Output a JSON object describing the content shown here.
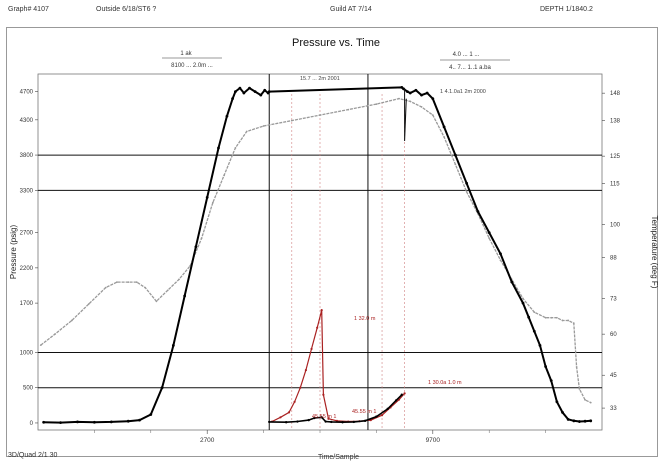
{
  "header": {
    "left": "Graph# 4107",
    "client": "Outside  6/18/ST6 ?",
    "center": "Guild AT 7/14",
    "right": "DEPTH 1/1840.2"
  },
  "footer": {
    "left": "3D/Quad 2/1 30",
    "center": "Time/Sample"
  },
  "annotations": {
    "top_left_fraction_top": "1 ak",
    "top_left_fraction_bottom": "8100 ... 2.0m ...",
    "top_right_fraction_top": "4.0 ... 1 ...",
    "top_right_fraction_bottom": "4.. 7... 1..1 a.ba",
    "peak_left": "15.7 ... 2m 2001",
    "peak_right": "1 4.1.0a1 2m 2000",
    "red_peak": "1 32.0 m",
    "red_end": "1 30.0a 1.0 m",
    "red_low_left": "45.55 m 1",
    "red_low_mid": "45.55 m 1"
  },
  "chart_data": {
    "type": "line",
    "title": "Pressure vs. Time",
    "xlabel": "",
    "ylabel": "Pressure (psig)",
    "y2label": "Temperature (deg F)",
    "xlim": [
      0,
      100
    ],
    "xticks": [
      {
        "x": 30,
        "label": "2700"
      },
      {
        "x": 70,
        "label": "9700"
      }
    ],
    "ylim": [
      -100,
      4950
    ],
    "yticks": [
      {
        "v": 4700,
        "label": "4700"
      },
      {
        "v": 4300,
        "label": "4300"
      },
      {
        "v": 3800,
        "label": "3800"
      },
      {
        "v": 3300,
        "label": "3300"
      },
      {
        "v": 2700,
        "label": "2700"
      },
      {
        "v": 2200,
        "label": "2200"
      },
      {
        "v": 1700,
        "label": "1700"
      },
      {
        "v": 1000,
        "label": "1000"
      },
      {
        "v": 500,
        "label": "500"
      },
      {
        "v": 0,
        "label": "0"
      }
    ],
    "y2lim": [
      25,
      155
    ],
    "y2ticks": [
      {
        "v": 148,
        "label": "148"
      },
      {
        "v": 138,
        "label": "138"
      },
      {
        "v": 125,
        "label": "125"
      },
      {
        "v": 115,
        "label": "115"
      },
      {
        "v": 100,
        "label": "100"
      },
      {
        "v": 88,
        "label": "88"
      },
      {
        "v": 73,
        "label": "73"
      },
      {
        "v": 60,
        "label": "60"
      },
      {
        "v": 45,
        "label": "45"
      },
      {
        "v": 33,
        "label": "33"
      }
    ],
    "hlines": [
      3800,
      3300,
      1000,
      500
    ],
    "vlines": [
      41,
      58.5
    ],
    "dashed_vlines": [
      45,
      50,
      61,
      65
    ],
    "pressure_series": {
      "name": "",
      "color": "#000000",
      "x": [
        1,
        4,
        7,
        10,
        13,
        16,
        18,
        20,
        22,
        24,
        26,
        28,
        30,
        32,
        33.5,
        34.5,
        35,
        35.8,
        36.5,
        37.5,
        38.5,
        39.5,
        40.2,
        40.8,
        41,
        64.5,
        64.8,
        65.5,
        66,
        67,
        68,
        69,
        70,
        72,
        74,
        76,
        78,
        80,
        82,
        84,
        86,
        87,
        88,
        89,
        90,
        91,
        92,
        93,
        94,
        95,
        96,
        97,
        98
      ],
      "y": [
        10,
        5,
        15,
        10,
        15,
        25,
        40,
        120,
        500,
        1100,
        1800,
        2500,
        3200,
        3900,
        4350,
        4600,
        4700,
        4750,
        4680,
        4750,
        4700,
        4650,
        4720,
        4680,
        4700,
        4760,
        4740,
        4700,
        4680,
        4720,
        4650,
        4680,
        4600,
        4200,
        3800,
        3400,
        3000,
        2700,
        2400,
        2000,
        1700,
        1500,
        1300,
        1100,
        800,
        600,
        300,
        150,
        50,
        30,
        20,
        25,
        30
      ]
    },
    "pressure_spike": {
      "x": [
        65,
        65,
        65.3
      ],
      "y": [
        4750,
        4000,
        4600
      ]
    },
    "lower_series": {
      "name": "",
      "color": "#000000",
      "x": [
        41,
        44,
        46,
        48,
        49,
        50.3,
        51,
        52,
        54,
        56,
        58,
        60,
        62,
        63.5,
        64.5
      ],
      "y": [
        15,
        10,
        20,
        40,
        70,
        80,
        20,
        15,
        10,
        15,
        30,
        90,
        200,
        320,
        400
      ]
    },
    "red_series": {
      "name": "",
      "color": "#aa2222",
      "x": [
        41.5,
        43,
        44.5,
        45.5,
        46.5,
        47.5,
        48.5,
        49.5,
        50.3,
        50.6,
        51.5,
        53,
        55,
        57,
        59,
        61,
        62.5,
        64,
        65
      ],
      "y": [
        20,
        80,
        150,
        300,
        500,
        750,
        1050,
        1350,
        1600,
        400,
        60,
        30,
        20,
        25,
        40,
        110,
        220,
        330,
        420
      ]
    },
    "temperature_series": {
      "name": "",
      "color": "#9a9a9a",
      "x": [
        0.5,
        3,
        6,
        9,
        12,
        14,
        16,
        17.5,
        19,
        21,
        23,
        25,
        27,
        29,
        31,
        33,
        35,
        37,
        40,
        45,
        50,
        55,
        60,
        64,
        66,
        68,
        70,
        72,
        74,
        76,
        78,
        80,
        82,
        84,
        86,
        88,
        90,
        91,
        92,
        93,
        94,
        95,
        95.5,
        96,
        97,
        98
      ],
      "y": [
        56,
        60,
        65,
        71,
        77,
        79,
        79,
        79,
        77,
        72,
        76,
        80,
        85,
        95,
        108,
        118,
        128,
        134,
        136,
        138,
        140,
        142,
        144,
        146,
        145,
        143,
        140,
        132,
        122,
        112,
        104,
        95,
        87,
        80,
        73,
        68,
        66,
        66,
        66,
        65,
        65,
        64,
        48,
        40,
        36,
        35
      ]
    }
  }
}
